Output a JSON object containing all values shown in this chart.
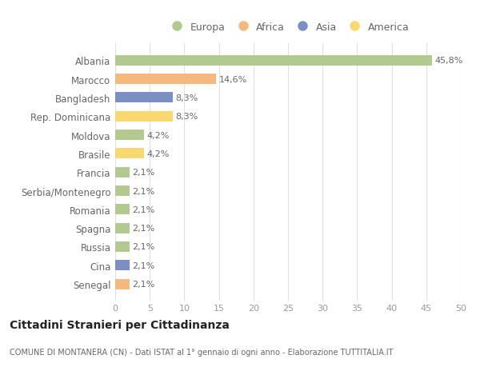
{
  "countries": [
    "Albania",
    "Marocco",
    "Bangladesh",
    "Rep. Dominicana",
    "Moldova",
    "Brasile",
    "Francia",
    "Serbia/Montenegro",
    "Romania",
    "Spagna",
    "Russia",
    "Cina",
    "Senegal"
  ],
  "values": [
    45.8,
    14.6,
    8.3,
    8.3,
    4.2,
    4.2,
    2.1,
    2.1,
    2.1,
    2.1,
    2.1,
    2.1,
    2.1
  ],
  "labels": [
    "45,8%",
    "14,6%",
    "8,3%",
    "8,3%",
    "4,2%",
    "4,2%",
    "2,1%",
    "2,1%",
    "2,1%",
    "2,1%",
    "2,1%",
    "2,1%",
    "2,1%"
  ],
  "continents": [
    "Europa",
    "Africa",
    "Asia",
    "America",
    "Europa",
    "America",
    "Europa",
    "Europa",
    "Europa",
    "Europa",
    "Europa",
    "Asia",
    "Africa"
  ],
  "colors": {
    "Europa": "#b2c990",
    "Africa": "#f5b980",
    "Asia": "#7b8fc4",
    "America": "#f8d870"
  },
  "legend_order": [
    "Europa",
    "Africa",
    "Asia",
    "America"
  ],
  "title1": "Cittadini Stranieri per Cittadinanza",
  "title2": "COMUNE DI MONTANERA (CN) - Dati ISTAT al 1° gennaio di ogni anno - Elaborazione TUTTITALIA.IT",
  "xlim": [
    0,
    50
  ],
  "xticks": [
    0,
    5,
    10,
    15,
    20,
    25,
    30,
    35,
    40,
    45,
    50
  ],
  "bg_color": "#ffffff",
  "grid_color": "#e0e0e0",
  "bar_height": 0.55
}
